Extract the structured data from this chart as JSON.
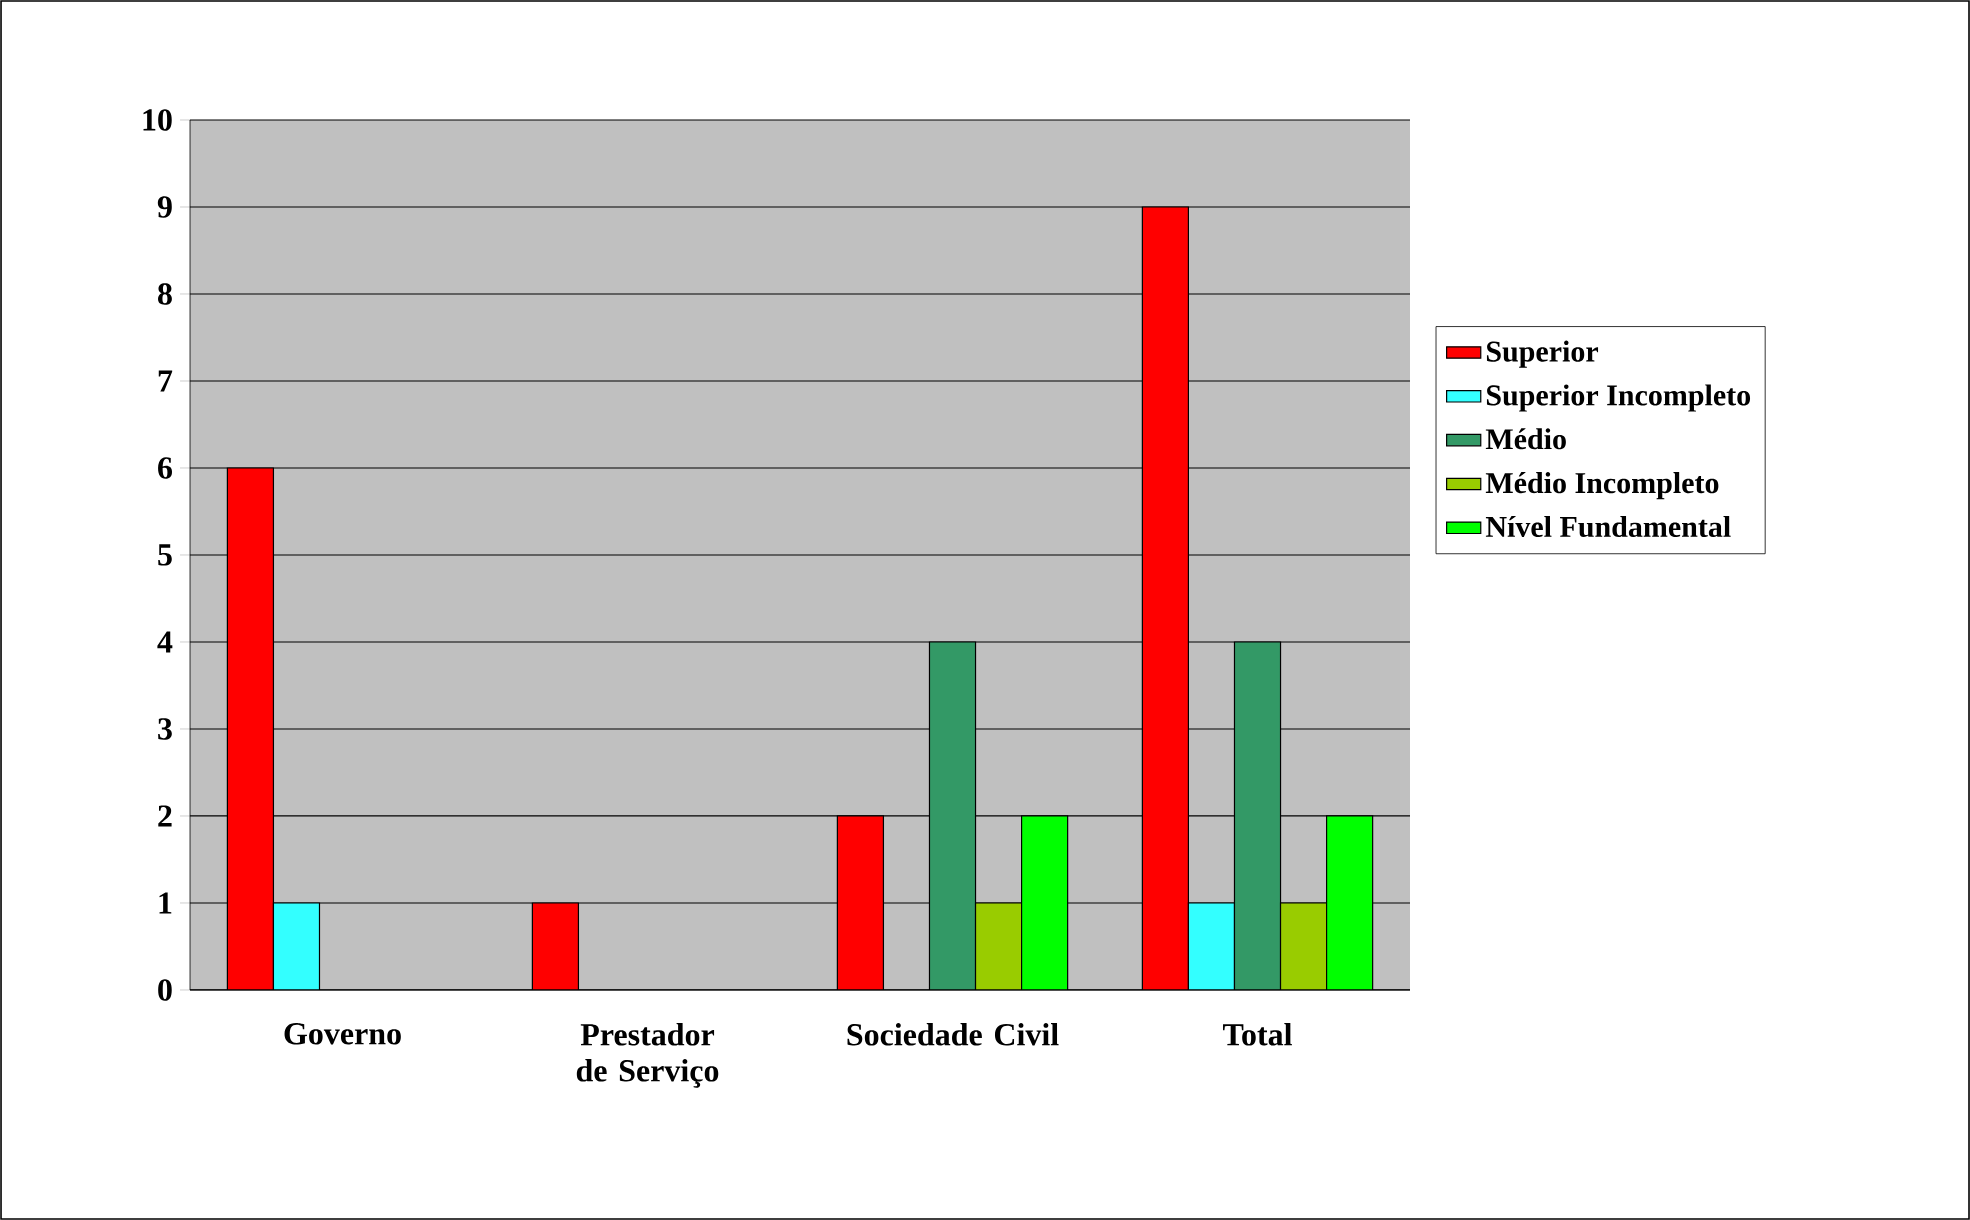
{
  "chart_data": {
    "type": "bar",
    "categories": [
      "Governo",
      "Prestador de Serviço",
      "Sociedade Civil",
      "Total"
    ],
    "series": [
      {
        "name": "Superior",
        "color": "#ff0000",
        "values": [
          6,
          1,
          2,
          9
        ]
      },
      {
        "name": "Superior Incompleto",
        "color": "#33ffff",
        "values": [
          1,
          null,
          null,
          1
        ]
      },
      {
        "name": "Médio",
        "color": "#339966",
        "values": [
          null,
          null,
          4,
          4
        ]
      },
      {
        "name": "Médio Incompleto",
        "color": "#99cc00",
        "values": [
          null,
          null,
          1,
          1
        ]
      },
      {
        "name": "Nível Fundamental",
        "color": "#00ff00",
        "values": [
          null,
          null,
          2,
          2
        ]
      }
    ],
    "ylim": [
      0,
      10
    ],
    "yticks": [
      0,
      1,
      2,
      3,
      4,
      5,
      6,
      7,
      8,
      9,
      10
    ],
    "grid": "y",
    "legend": "right"
  }
}
